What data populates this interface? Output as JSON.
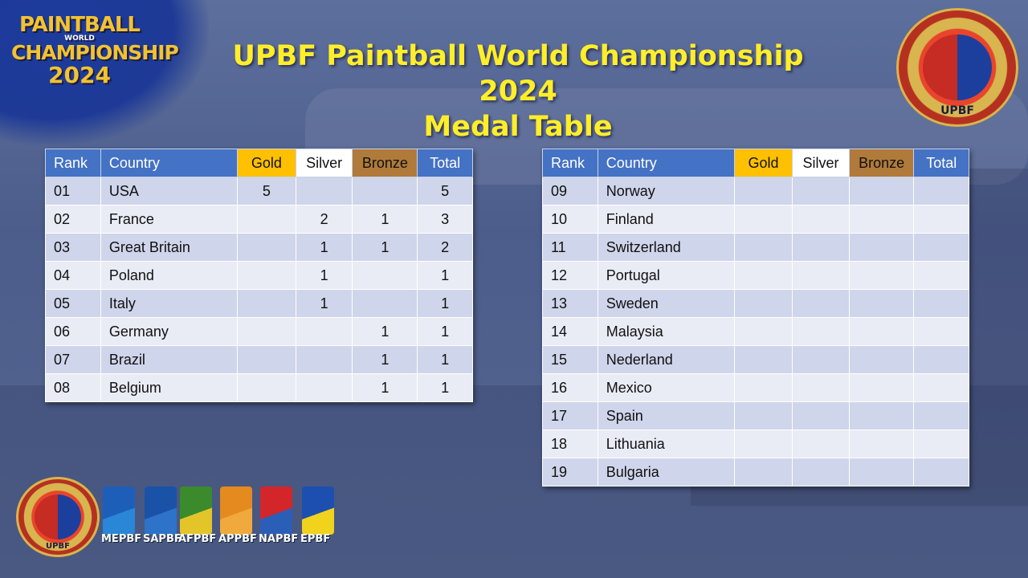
{
  "header": {
    "title_line1": "UPBF Paintball World Championship 2024",
    "title_line2": "Medal Table"
  },
  "logo_topleft": {
    "line1": "PAINTBALL",
    "line2": "WORLD",
    "line3": "CHAMPIONSHIP",
    "line4": "2024"
  },
  "badge_topright": {
    "text": "PAINTBALL WORLD CHAMPIONSHIP",
    "label": "UPBF"
  },
  "badge_bottomleft": {
    "text": "PAINTBALL WORLD CHAMPIONSHIP",
    "label": "UPBF"
  },
  "federations": [
    "MEPBF",
    "SAPBF",
    "AFPBF",
    "APPBF",
    "NAPBF",
    "EPBF"
  ],
  "colors": {
    "header_blue": "#4472c4",
    "gold": "#ffc000",
    "silver": "#ffffff",
    "bronze": "#b07a3a",
    "title_yellow": "#ffee28"
  },
  "table_headers": {
    "rank": "Rank",
    "country": "Country",
    "gold": "Gold",
    "silver": "Silver",
    "bronze": "Bronze",
    "total": "Total"
  },
  "left_table": [
    {
      "rank": "01",
      "country": "USA",
      "gold": "5",
      "silver": "",
      "bronze": "",
      "total": "5"
    },
    {
      "rank": "02",
      "country": "France",
      "gold": "",
      "silver": "2",
      "bronze": "1",
      "total": "3"
    },
    {
      "rank": "03",
      "country": "Great Britain",
      "gold": "",
      "silver": "1",
      "bronze": "1",
      "total": "2"
    },
    {
      "rank": "04",
      "country": "Poland",
      "gold": "",
      "silver": "1",
      "bronze": "",
      "total": "1"
    },
    {
      "rank": "05",
      "country": "Italy",
      "gold": "",
      "silver": "1",
      "bronze": "",
      "total": "1"
    },
    {
      "rank": "06",
      "country": "Germany",
      "gold": "",
      "silver": "",
      "bronze": "1",
      "total": "1"
    },
    {
      "rank": "07",
      "country": "Brazil",
      "gold": "",
      "silver": "",
      "bronze": "1",
      "total": "1"
    },
    {
      "rank": "08",
      "country": "Belgium",
      "gold": "",
      "silver": "",
      "bronze": "1",
      "total": "1"
    }
  ],
  "right_table": [
    {
      "rank": "09",
      "country": "Norway",
      "gold": "",
      "silver": "",
      "bronze": "",
      "total": ""
    },
    {
      "rank": "10",
      "country": "Finland",
      "gold": "",
      "silver": "",
      "bronze": "",
      "total": ""
    },
    {
      "rank": "11",
      "country": "Switzerland",
      "gold": "",
      "silver": "",
      "bronze": "",
      "total": ""
    },
    {
      "rank": "12",
      "country": "Portugal",
      "gold": "",
      "silver": "",
      "bronze": "",
      "total": ""
    },
    {
      "rank": "13",
      "country": "Sweden",
      "gold": "",
      "silver": "",
      "bronze": "",
      "total": ""
    },
    {
      "rank": "14",
      "country": "Malaysia",
      "gold": "",
      "silver": "",
      "bronze": "",
      "total": ""
    },
    {
      "rank": "15",
      "country": "Nederland",
      "gold": "",
      "silver": "",
      "bronze": "",
      "total": ""
    },
    {
      "rank": "16",
      "country": "Mexico",
      "gold": "",
      "silver": "",
      "bronze": "",
      "total": ""
    },
    {
      "rank": "17",
      "country": "Spain",
      "gold": "",
      "silver": "",
      "bronze": "",
      "total": ""
    },
    {
      "rank": "18",
      "country": "Lithuania",
      "gold": "",
      "silver": "",
      "bronze": "",
      "total": ""
    },
    {
      "rank": "19",
      "country": "Bulgaria",
      "gold": "",
      "silver": "",
      "bronze": "",
      "total": ""
    }
  ]
}
